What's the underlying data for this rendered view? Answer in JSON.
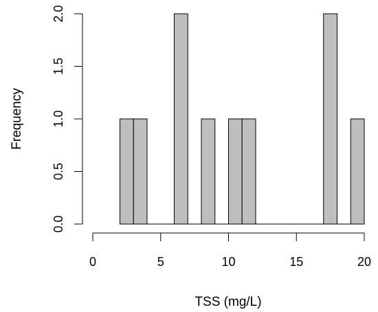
{
  "chart_data": {
    "type": "bar",
    "title": "",
    "xlabel": "TSS (mg/L)",
    "ylabel": "Frequency",
    "xlim": [
      0,
      20
    ],
    "ylim": [
      0,
      2
    ],
    "x_ticks": [
      0,
      5,
      10,
      15,
      20
    ],
    "y_ticks": [
      0.0,
      0.5,
      1.0,
      1.5,
      2.0
    ],
    "y_tick_labels": [
      "0.0",
      "0.5",
      "1.0",
      "1.5",
      "2.0"
    ],
    "bin_width": 1,
    "bins": [
      {
        "start": 2,
        "end": 3,
        "count": 1
      },
      {
        "start": 3,
        "end": 4,
        "count": 1
      },
      {
        "start": 4,
        "end": 5,
        "count": 0
      },
      {
        "start": 5,
        "end": 6,
        "count": 0
      },
      {
        "start": 6,
        "end": 7,
        "count": 2
      },
      {
        "start": 7,
        "end": 8,
        "count": 0
      },
      {
        "start": 8,
        "end": 9,
        "count": 1
      },
      {
        "start": 9,
        "end": 10,
        "count": 0
      },
      {
        "start": 10,
        "end": 11,
        "count": 1
      },
      {
        "start": 11,
        "end": 12,
        "count": 1
      },
      {
        "start": 12,
        "end": 13,
        "count": 0
      },
      {
        "start": 13,
        "end": 14,
        "count": 0
      },
      {
        "start": 14,
        "end": 15,
        "count": 0
      },
      {
        "start": 15,
        "end": 16,
        "count": 0
      },
      {
        "start": 16,
        "end": 17,
        "count": 0
      },
      {
        "start": 17,
        "end": 18,
        "count": 2
      },
      {
        "start": 18,
        "end": 19,
        "count": 0
      },
      {
        "start": 19,
        "end": 20,
        "count": 1
      }
    ],
    "grid": false,
    "bar_fill": "#bebebe",
    "bar_stroke": "#000000"
  }
}
